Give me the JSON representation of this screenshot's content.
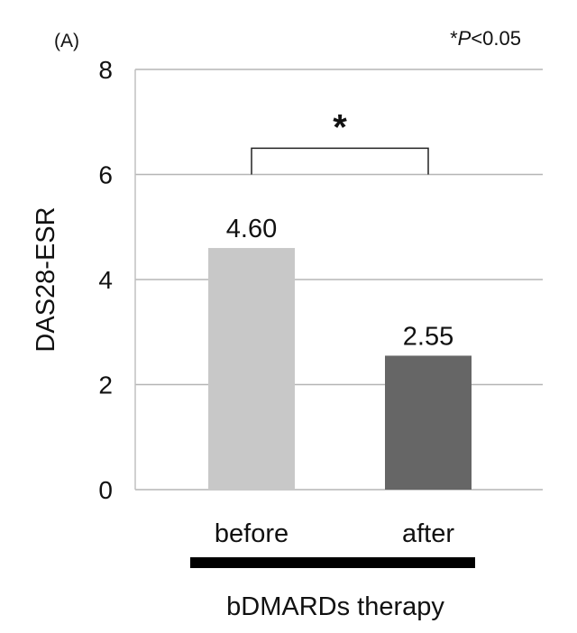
{
  "chart_data": {
    "type": "bar",
    "panel_label": "(A)",
    "significance_note_prefix": "*",
    "significance_note_italic": "P",
    "significance_note_suffix": "<0.05",
    "significance_marker": "*",
    "ylabel": "DAS28-ESR",
    "xlabel": "bDMARDs therapy",
    "ylim": [
      0,
      8
    ],
    "yticks": [
      "0",
      "2",
      "4",
      "6",
      "8"
    ],
    "grid": true,
    "categories": [
      "before",
      "after"
    ],
    "values": [
      4.6,
      2.55
    ],
    "data_labels": [
      "4.60",
      "2.55"
    ],
    "bar_colors": [
      "#c8c8c8",
      "#666666"
    ],
    "gridline_color": "#b5b5b5",
    "bracket_level": 6.5,
    "bracket_base": 6.0
  }
}
